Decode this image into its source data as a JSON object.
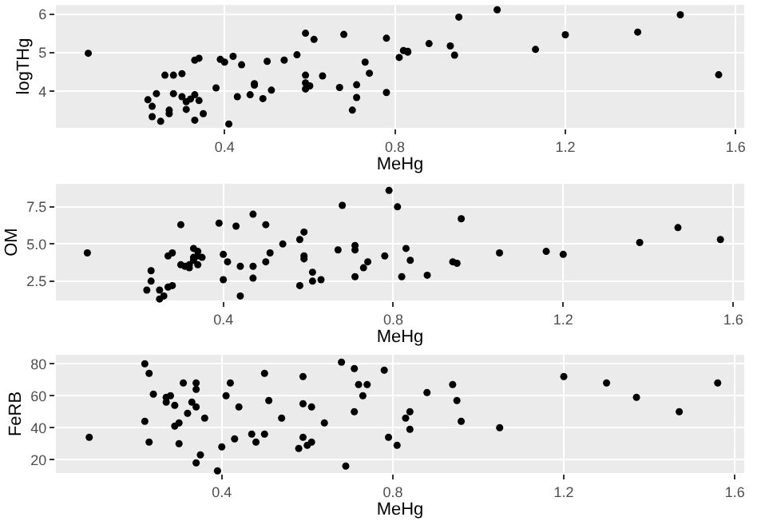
{
  "chart_data": [
    {
      "type": "scatter",
      "xlabel": "MeHg",
      "ylabel": "logTHg",
      "xlim": [
        0.004,
        1.62
      ],
      "ylim": [
        3.05,
        6.25
      ],
      "xticks": [
        0.4,
        0.8,
        1.2,
        1.6
      ],
      "yticks": [
        4,
        5,
        6
      ],
      "grid": true,
      "marker": "circle",
      "series": [
        {
          "color": "#000000",
          "x": [
            0.08,
            0.22,
            0.23,
            0.23,
            0.24,
            0.25,
            0.26,
            0.27,
            0.27,
            0.28,
            0.28,
            0.3,
            0.3,
            0.31,
            0.31,
            0.32,
            0.33,
            0.33,
            0.33,
            0.34,
            0.34,
            0.35,
            0.38,
            0.39,
            0.4,
            0.41,
            0.42,
            0.43,
            0.44,
            0.46,
            0.47,
            0.47,
            0.49,
            0.5,
            0.51,
            0.54,
            0.57,
            0.59,
            0.59,
            0.59,
            0.59,
            0.6,
            0.61,
            0.63,
            0.67,
            0.68,
            0.71,
            0.7,
            0.71,
            0.73,
            0.74,
            0.78,
            0.78,
            0.81,
            0.82,
            0.83,
            0.83,
            0.88,
            0.93,
            0.94,
            0.95,
            1.04,
            1.13,
            1.2,
            1.37,
            1.47,
            1.56
          ],
          "values": [
            4.99,
            3.78,
            3.34,
            3.61,
            3.94,
            3.22,
            4.42,
            3.51,
            3.42,
            4.42,
            3.94,
            3.86,
            4.46,
            3.53,
            3.73,
            3.8,
            4.81,
            3.91,
            3.25,
            3.76,
            4.86,
            3.42,
            4.09,
            4.83,
            4.76,
            3.15,
            4.91,
            3.86,
            4.69,
            3.91,
            4.16,
            4.2,
            3.81,
            4.78,
            4.03,
            4.81,
            4.95,
            4.42,
            4.22,
            4.06,
            5.51,
            4.14,
            5.35,
            4.4,
            4.1,
            5.48,
            4.17,
            3.51,
            3.84,
            4.76,
            4.47,
            3.97,
            5.38,
            4.88,
            5.06,
            5.04,
            5.02,
            5.24,
            5.18,
            4.94,
            5.93,
            6.12,
            5.09,
            5.47,
            5.54,
            5.99,
            4.43
          ]
        }
      ]
    },
    {
      "type": "scatter",
      "xlabel": "MeHg",
      "ylabel": "OM",
      "xlim": [
        0.006,
        1.626
      ],
      "ylim": [
        1.2,
        9.05
      ],
      "xticks": [
        0.4,
        0.8,
        1.2,
        1.6
      ],
      "yticks": [
        2.5,
        {
          "value": 5,
          "label": "5.0"
        },
        7.5
      ],
      "grid": true,
      "marker": "circle",
      "series": [
        {
          "color": "#000000",
          "x": [
            0.08,
            0.22,
            0.23,
            0.23,
            0.25,
            0.25,
            0.26,
            0.27,
            0.27,
            0.28,
            0.28,
            0.3,
            0.3,
            0.31,
            0.32,
            0.32,
            0.33,
            0.33,
            0.33,
            0.34,
            0.34,
            0.34,
            0.35,
            0.39,
            0.4,
            0.4,
            0.41,
            0.43,
            0.44,
            0.44,
            0.47,
            0.47,
            0.47,
            0.5,
            0.5,
            0.51,
            0.54,
            0.58,
            0.58,
            0.59,
            0.59,
            0.59,
            0.61,
            0.61,
            0.63,
            0.67,
            0.68,
            0.71,
            0.71,
            0.71,
            0.73,
            0.74,
            0.78,
            0.79,
            0.81,
            0.82,
            0.83,
            0.84,
            0.88,
            0.94,
            0.95,
            0.96,
            1.05,
            1.16,
            1.2,
            1.38,
            1.47,
            1.57
          ],
          "values": [
            4.4,
            1.9,
            3.2,
            2.5,
            1.3,
            1.9,
            1.5,
            4.2,
            2.1,
            4.4,
            2.2,
            6.3,
            3.6,
            3.5,
            3.4,
            3.6,
            4.7,
            3.9,
            4.1,
            4.2,
            3.6,
            4.5,
            4.1,
            6.4,
            4.3,
            2.6,
            3.8,
            6.2,
            3.5,
            1.5,
            7.0,
            3.5,
            2.7,
            3.8,
            6.3,
            4.4,
            5.0,
            5.3,
            2.2,
            4.2,
            4.0,
            5.8,
            2.5,
            3.1,
            2.6,
            4.6,
            7.6,
            4.9,
            2.8,
            4.6,
            3.4,
            3.8,
            4.2,
            8.6,
            7.5,
            2.8,
            4.7,
            3.9,
            2.9,
            3.8,
            3.7,
            6.7,
            4.4,
            4.5,
            4.3,
            5.1,
            6.1,
            5.3
          ]
        }
      ]
    },
    {
      "type": "scatter",
      "xlabel": "MeHg",
      "ylabel": "FeRB",
      "xlim": [
        0.012,
        1.622
      ],
      "ylim": [
        11.6,
        85.6
      ],
      "xticks": [
        0.4,
        0.8,
        1.2,
        1.6
      ],
      "yticks": [
        20,
        40,
        60,
        80
      ],
      "grid": true,
      "marker": "circle",
      "series": [
        {
          "color": "#000000",
          "x": [
            0.09,
            0.22,
            0.23,
            0.22,
            0.23,
            0.24,
            0.27,
            0.27,
            0.28,
            0.29,
            0.29,
            0.3,
            0.3,
            0.31,
            0.32,
            0.33,
            0.34,
            0.34,
            0.34,
            0.34,
            0.35,
            0.36,
            0.39,
            0.4,
            0.41,
            0.42,
            0.43,
            0.44,
            0.47,
            0.48,
            0.5,
            0.5,
            0.51,
            0.54,
            0.58,
            0.59,
            0.59,
            0.59,
            0.6,
            0.61,
            0.61,
            0.64,
            0.68,
            0.69,
            0.71,
            0.71,
            0.72,
            0.73,
            0.74,
            0.78,
            0.79,
            0.81,
            0.83,
            0.84,
            0.84,
            0.88,
            0.94,
            0.95,
            0.96,
            1.05,
            1.3,
            1.2,
            1.37,
            1.47,
            1.56
          ],
          "values": [
            34,
            44,
            31,
            80,
            74,
            61,
            59,
            56,
            60,
            54,
            41,
            43,
            30,
            68,
            49,
            56,
            68,
            64,
            53,
            18,
            23,
            46,
            13,
            28,
            60,
            68,
            33,
            53,
            36,
            31,
            74,
            36,
            57,
            46,
            27,
            34,
            55,
            72,
            29,
            53,
            31,
            43,
            81,
            16,
            77,
            50,
            67,
            60,
            67,
            76,
            34,
            29,
            46,
            50,
            39,
            62,
            67,
            57,
            44,
            40,
            68,
            72,
            59,
            50,
            68
          ]
        }
      ]
    }
  ]
}
